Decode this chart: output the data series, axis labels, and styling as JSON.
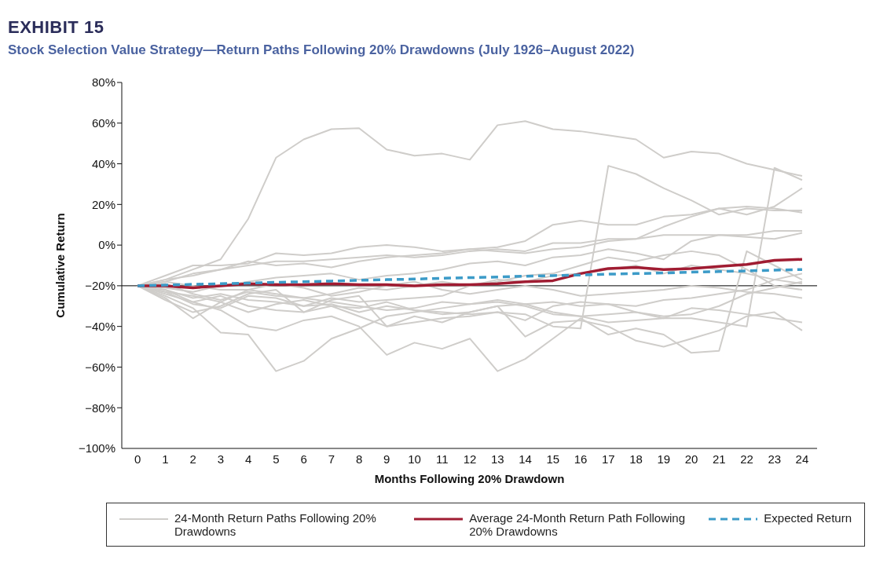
{
  "chart_data": {
    "type": "line",
    "title": "EXHIBIT 15",
    "subtitle": "Stock Selection Value Strategy—Return Paths Following 20% Drawdowns (July 1926–August 2022)",
    "xlabel": "Months Following 20% Drawdown",
    "ylabel": "Cumulative Return",
    "x": [
      0,
      1,
      2,
      3,
      4,
      5,
      6,
      7,
      8,
      9,
      10,
      11,
      12,
      13,
      14,
      15,
      16,
      17,
      18,
      19,
      20,
      21,
      22,
      23,
      24
    ],
    "xlim": [
      -0.57,
      24.54
    ],
    "xticks": [
      0,
      1,
      2,
      3,
      4,
      5,
      6,
      7,
      8,
      9,
      10,
      11,
      12,
      13,
      14,
      15,
      16,
      17,
      18,
      19,
      20,
      21,
      22,
      23,
      24
    ],
    "ylim": [
      -100,
      80
    ],
    "yticks": [
      {
        "value": -100,
        "label": "−100%"
      },
      {
        "value": -80,
        "label": "−80%"
      },
      {
        "value": -60,
        "label": "−60%"
      },
      {
        "value": -40,
        "label": "−40%"
      },
      {
        "value": -20,
        "label": "−20%"
      },
      {
        "value": 0,
        "label": "0%"
      },
      {
        "value": 20,
        "label": "20%"
      },
      {
        "value": 40,
        "label": "40%"
      },
      {
        "value": 60,
        "label": "60%"
      },
      {
        "value": 80,
        "label": "80%"
      }
    ],
    "grid": false,
    "legend": "bottom",
    "marker": "none",
    "line_style": "solid",
    "ref_lines": [
      {
        "axis": "y",
        "value": -20,
        "color": "#000000"
      }
    ],
    "series": [
      {
        "name": "24-Month Return Paths Following 20% Drawdowns",
        "color": "#cfcdca",
        "values": [
          -20,
          -17,
          -12,
          -7,
          13,
          43,
          52,
          57,
          57.5,
          47,
          44,
          45,
          42,
          59,
          61,
          57,
          56,
          54,
          52,
          43,
          46,
          45,
          40,
          37,
          34
        ]
      },
      {
        "color": "#cfcdca",
        "values": [
          -20,
          -24,
          -28,
          -25,
          -30,
          -32,
          -33,
          -30,
          -35,
          -40,
          -38,
          -36,
          -35,
          -33,
          -34,
          -40,
          -41,
          39,
          35,
          28,
          22,
          15,
          18,
          17,
          17
        ]
      },
      {
        "color": "#cfcdca",
        "values": [
          -20,
          -22,
          -26,
          -24,
          -27,
          -28,
          -30,
          -29,
          -33,
          -30,
          -32,
          -34,
          -33,
          -30,
          -29,
          -33,
          -35,
          -38,
          -37,
          -36,
          -36,
          -38,
          -40,
          38,
          32
        ]
      },
      {
        "color": "#cfcdca",
        "values": [
          -20,
          -25,
          -31,
          -43,
          -44,
          -62,
          -57,
          -46,
          -41,
          -35,
          -33,
          -31,
          -29,
          -28,
          -30,
          -34,
          -35,
          -34,
          -33,
          -35,
          -34,
          -30,
          -24,
          -21,
          -18
        ]
      },
      {
        "color": "#cfcdca",
        "values": [
          -20,
          -22,
          -28,
          -32,
          -40,
          -42,
          -37,
          -35,
          -40,
          -54,
          -48,
          -51,
          -46,
          -62,
          -56,
          -46,
          -36,
          -44,
          -41,
          -44,
          -53,
          -52,
          -3,
          -10,
          -17
        ]
      },
      {
        "color": "#cfcdca",
        "values": [
          -20,
          -17,
          -15,
          -12,
          -10,
          -8,
          -8,
          -7,
          -6,
          -5,
          -6,
          -5,
          -3,
          -2,
          -3,
          1,
          1,
          3,
          3,
          9,
          14,
          18,
          19,
          18,
          16
        ]
      },
      {
        "color": "#cfcdca",
        "values": [
          -20,
          -15,
          -10,
          -10,
          -9,
          -4,
          -5,
          -4,
          -1,
          0,
          -1,
          -3,
          -2,
          -1,
          2,
          10,
          12,
          10,
          10,
          14,
          15,
          18,
          15,
          19,
          28
        ]
      },
      {
        "color": "#cfcdca",
        "values": [
          -20,
          -18,
          -14,
          -12,
          -8,
          -10,
          -9,
          -11,
          -8,
          -6,
          -5,
          -4,
          -2,
          -3,
          -4,
          -2,
          -1,
          2,
          3,
          5,
          5,
          5,
          5,
          7,
          7
        ]
      },
      {
        "color": "#cfcdca",
        "values": [
          -20,
          -21,
          -23,
          -20,
          -18,
          -16,
          -15,
          -14,
          -17,
          -15,
          -14,
          -12,
          -9,
          -8,
          -10,
          -6,
          -5,
          -2,
          -4,
          -7,
          2,
          5,
          4,
          3,
          6
        ]
      },
      {
        "color": "#cfcdca",
        "values": [
          -20,
          -23,
          -29,
          -31,
          -25,
          -26,
          -30,
          -26,
          -28,
          -27,
          -26,
          -25,
          -20,
          -18,
          -15,
          -14,
          -10,
          -6,
          -8,
          -5,
          -3,
          -5,
          -12,
          -20,
          -22
        ]
      },
      {
        "color": "#cfcdca",
        "values": [
          -20,
          -26,
          -36,
          -28,
          -22,
          -24,
          -26,
          -24,
          -21,
          -22,
          -20,
          -18,
          -20,
          -17,
          -18,
          -15,
          -14,
          -12,
          -10,
          -14,
          -10,
          -12,
          -14,
          -17,
          -19
        ]
      },
      {
        "color": "#cfcdca",
        "values": [
          -20,
          -19,
          -24,
          -27,
          -23,
          -25,
          -26,
          -28,
          -30,
          -32,
          -31,
          -28,
          -29,
          -27,
          -29,
          -28,
          -30,
          -29,
          -30,
          -27,
          -26,
          -24,
          -22,
          -17,
          -14
        ]
      },
      {
        "color": "#cfcdca",
        "values": [
          -20,
          -27,
          -33,
          -30,
          -24,
          -22,
          -33,
          -27,
          -25,
          -40,
          -35,
          -38,
          -33,
          -30,
          -45,
          -38,
          -37,
          -40,
          -47,
          -50,
          -46,
          -42,
          -35,
          -33,
          -42
        ]
      },
      {
        "color": "#cfcdca",
        "values": [
          -20,
          -23,
          -25,
          -28,
          -33,
          -29,
          -27,
          -30,
          -31,
          -28,
          -32,
          -33,
          -34,
          -33,
          -37,
          -30,
          -28,
          -29,
          -33,
          -36,
          -31,
          -32,
          -34,
          -36,
          -38
        ]
      },
      {
        "color": "#cfcdca",
        "values": [
          -20,
          -18,
          -20,
          -22,
          -22,
          -19,
          -21,
          -25,
          -23,
          -20,
          -18,
          -22,
          -24,
          -22,
          -20,
          -22,
          -25,
          -24,
          -23,
          -22,
          -20,
          -21,
          -23,
          -24,
          -26
        ]
      },
      {
        "name": "Average 24-Month Return Path Following 20% Drawdowns",
        "color": "#a01c32",
        "values": [
          -20,
          -20,
          -21,
          -20,
          -19,
          -19.5,
          -19.5,
          -19,
          -19.5,
          -19.5,
          -20,
          -19.5,
          -19.5,
          -19,
          -18,
          -17.5,
          -14,
          -11.5,
          -11,
          -12,
          -11.5,
          -10.5,
          -9.5,
          -7.5,
          -7
        ]
      },
      {
        "name": "Expected Return",
        "color": "#3c9bc8",
        "line_style": "dashed",
        "values": [
          -20,
          -19.7,
          -19.3,
          -19,
          -18.7,
          -18.3,
          -18,
          -17.7,
          -17.3,
          -17,
          -16.7,
          -16.3,
          -16,
          -15.7,
          -15.3,
          -15,
          -14.7,
          -14.3,
          -14,
          -13.7,
          -13.3,
          -13,
          -12.7,
          -12.3,
          -12
        ]
      }
    ]
  }
}
